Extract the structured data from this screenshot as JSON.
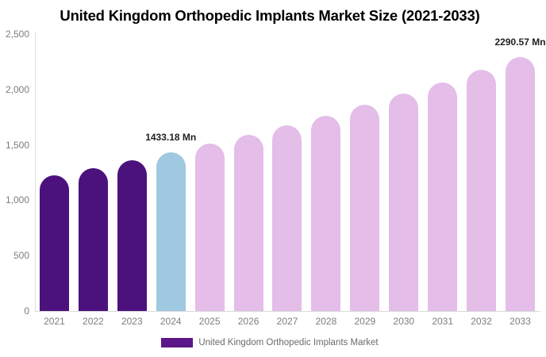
{
  "chart_data": {
    "type": "bar",
    "title": "United Kingdom Orthopedic Implants Market Size (2021-2033)",
    "xlabel": "",
    "ylabel": "",
    "unit": "Mn",
    "categories": [
      "2021",
      "2022",
      "2023",
      "2024",
      "2025",
      "2026",
      "2027",
      "2028",
      "2029",
      "2030",
      "2031",
      "2032",
      "2033"
    ],
    "values": [
      1226,
      1291,
      1360,
      1433.18,
      1510,
      1591,
      1676,
      1766,
      1860,
      1960,
      2064,
      2175,
      2290.57
    ],
    "segments": [
      "historical",
      "historical",
      "historical",
      "current",
      "forecast",
      "forecast",
      "forecast",
      "forecast",
      "forecast",
      "forecast",
      "forecast",
      "forecast",
      "forecast"
    ],
    "colors": {
      "historical": "#4B127D",
      "current": "#9FC8E1",
      "forecast": "#E4BDE9"
    },
    "ylim": [
      0,
      2500
    ],
    "yticks": [
      "0",
      "500",
      "1,000",
      "1,500",
      "2,000",
      "2,500"
    ],
    "grid": false,
    "axis_color": "#DDDDDD",
    "annotations": [
      {
        "category": "2024",
        "text": "1433.18 Mn"
      },
      {
        "category": "2033",
        "text": "2290.57 Mn"
      }
    ],
    "legend_position": "bottom",
    "legend": [
      {
        "label": "United Kingdom Orthopedic Implants Market",
        "color": "#5B1687"
      }
    ]
  }
}
